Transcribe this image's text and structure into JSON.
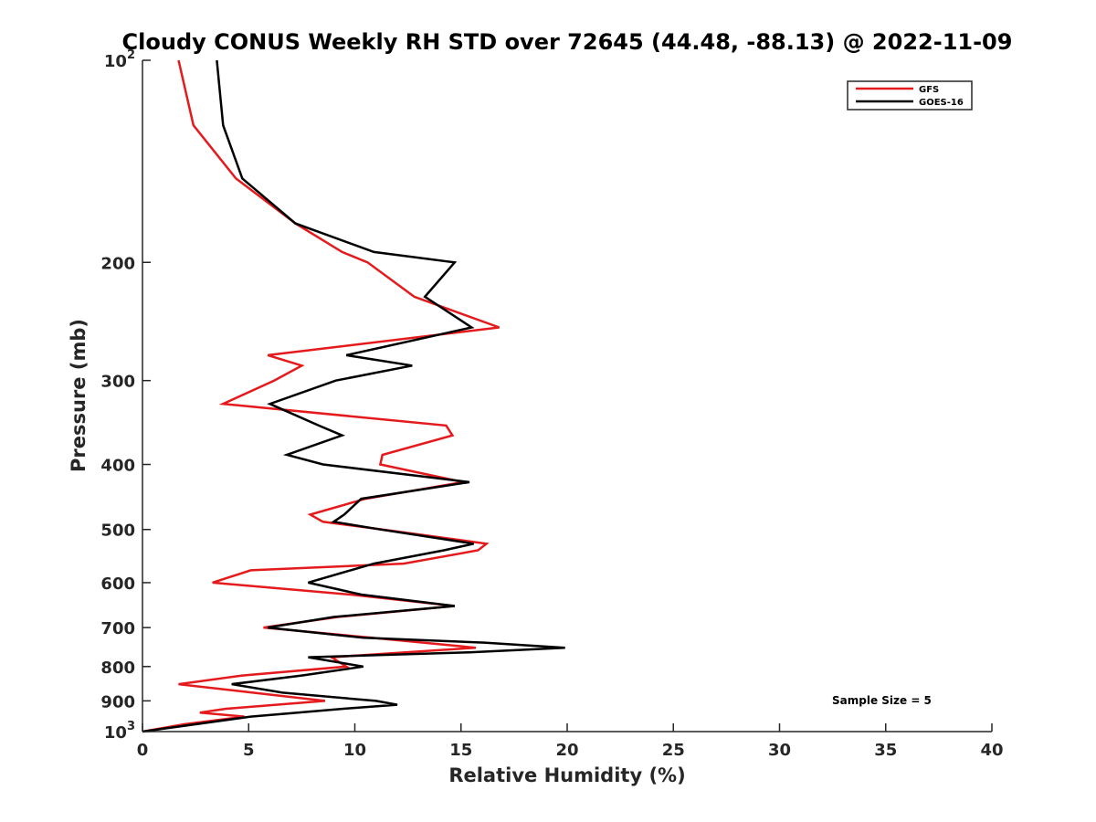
{
  "chart_data": {
    "type": "line",
    "title": "Cloudy CONUS Weekly RH STD over 72645 (44.48, -88.13) @ 2022-11-09",
    "xlabel": "Relative Humidity (%)",
    "ylabel": "Pressure (mb)",
    "xlim": [
      0,
      40
    ],
    "ylim": [
      1000,
      100
    ],
    "yscale": "log",
    "y_reversed": true,
    "x_ticks": [
      "0",
      "5",
      "10",
      "15",
      "20",
      "25",
      "30",
      "35",
      "40"
    ],
    "x_tick_values": [
      0,
      5,
      10,
      15,
      20,
      25,
      30,
      35,
      40
    ],
    "y_ticks": [
      {
        "value": 100,
        "base": "10",
        "exp": "2"
      },
      {
        "value": 200,
        "base": "200",
        "exp": ""
      },
      {
        "value": 300,
        "base": "300",
        "exp": ""
      },
      {
        "value": 400,
        "base": "400",
        "exp": ""
      },
      {
        "value": 500,
        "base": "500",
        "exp": ""
      },
      {
        "value": 600,
        "base": "600",
        "exp": ""
      },
      {
        "value": 700,
        "base": "700",
        "exp": ""
      },
      {
        "value": 800,
        "base": "800",
        "exp": ""
      },
      {
        "value": 900,
        "base": "900",
        "exp": ""
      },
      {
        "value": 1000,
        "base": "10",
        "exp": "3"
      }
    ],
    "grid": false,
    "legend": {
      "placement": "top-right"
    },
    "annotation": "Sample Size = 5",
    "series": [
      {
        "name": "GFS",
        "color": "#e41a1c",
        "points": [
          [
            1.7,
            100
          ],
          [
            2.4,
            125
          ],
          [
            4.4,
            150
          ],
          [
            7.2,
            175
          ],
          [
            9.4,
            193
          ],
          [
            10.6,
            200
          ],
          [
            12.8,
            225
          ],
          [
            16.8,
            250
          ],
          [
            5.9,
            275
          ],
          [
            7.5,
            285
          ],
          [
            6.2,
            300
          ],
          [
            3.8,
            325
          ],
          [
            14.3,
            350
          ],
          [
            14.6,
            362
          ],
          [
            11.3,
            387
          ],
          [
            11.2,
            400
          ],
          [
            15.1,
            425
          ],
          [
            10.5,
            450
          ],
          [
            7.9,
            475
          ],
          [
            8.5,
            487
          ],
          [
            11.3,
            500
          ],
          [
            16.2,
            525
          ],
          [
            15.8,
            537
          ],
          [
            12.3,
            562
          ],
          [
            5.1,
            575
          ],
          [
            3.3,
            600
          ],
          [
            9.8,
            625
          ],
          [
            14.7,
            650
          ],
          [
            9.2,
            675
          ],
          [
            5.7,
            700
          ],
          [
            10.8,
            725
          ],
          [
            15.7,
            750
          ],
          [
            8.9,
            775
          ],
          [
            9.6,
            800
          ],
          [
            4.7,
            825
          ],
          [
            1.7,
            850
          ],
          [
            5.2,
            875
          ],
          [
            8.6,
            900
          ],
          [
            3.9,
            925
          ],
          [
            2.7,
            937
          ],
          [
            4.8,
            950
          ],
          [
            2.0,
            975
          ],
          [
            0.0,
            1000
          ]
        ]
      },
      {
        "name": "GOES-16",
        "color": "#000000",
        "points": [
          [
            3.5,
            100
          ],
          [
            3.8,
            125
          ],
          [
            4.7,
            150
          ],
          [
            7.2,
            175
          ],
          [
            10.9,
            193
          ],
          [
            14.7,
            200
          ],
          [
            13.3,
            225
          ],
          [
            15.5,
            250
          ],
          [
            9.6,
            275
          ],
          [
            12.7,
            285
          ],
          [
            9.1,
            300
          ],
          [
            6.0,
            325
          ],
          [
            8.3,
            350
          ],
          [
            9.4,
            362
          ],
          [
            6.8,
            387
          ],
          [
            8.5,
            400
          ],
          [
            15.4,
            425
          ],
          [
            10.3,
            450
          ],
          [
            9.5,
            475
          ],
          [
            9.0,
            487
          ],
          [
            11.2,
            500
          ],
          [
            15.6,
            525
          ],
          [
            14.2,
            537
          ],
          [
            10.9,
            562
          ],
          [
            9.8,
            575
          ],
          [
            7.8,
            600
          ],
          [
            10.3,
            625
          ],
          [
            14.7,
            650
          ],
          [
            9.0,
            675
          ],
          [
            5.9,
            700
          ],
          [
            10.4,
            725
          ],
          [
            16.1,
            737
          ],
          [
            19.9,
            750
          ],
          [
            15.4,
            762
          ],
          [
            7.8,
            775
          ],
          [
            10.4,
            800
          ],
          [
            7.5,
            825
          ],
          [
            4.2,
            850
          ],
          [
            6.6,
            875
          ],
          [
            11.0,
            900
          ],
          [
            12.0,
            912
          ],
          [
            9.4,
            925
          ],
          [
            5.1,
            950
          ],
          [
            0.0,
            1000
          ]
        ]
      }
    ]
  }
}
